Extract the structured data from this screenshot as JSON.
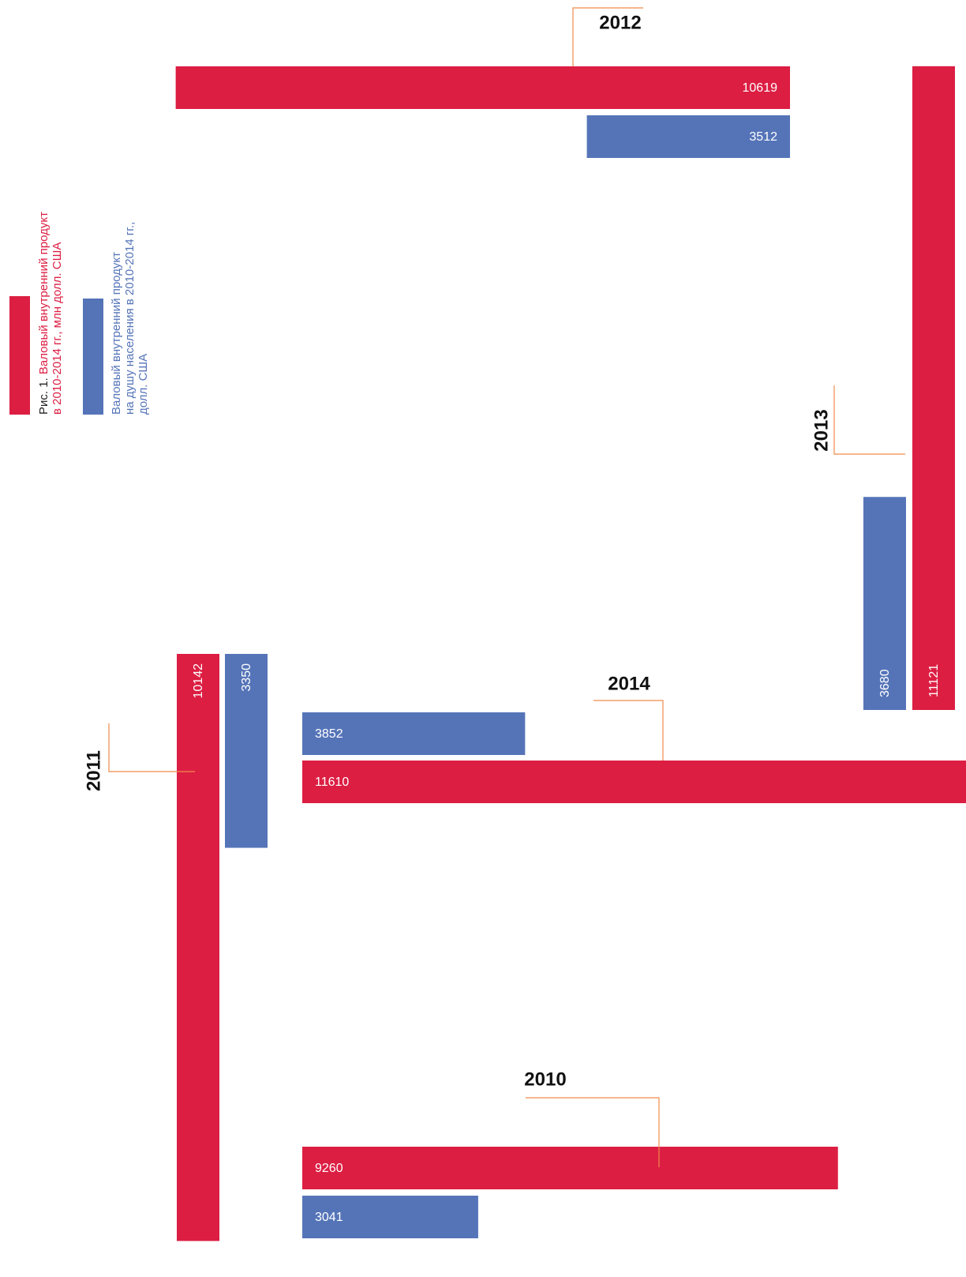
{
  "chart_data": {
    "type": "bar",
    "figure_label": "Рис. 1.",
    "categories": [
      "2010",
      "2011",
      "2012",
      "2013",
      "2014"
    ],
    "series": [
      {
        "name": "Валовый внутренний продукт\nв 2010-2014 гг., млн долл. США",
        "color": "#dc1e43",
        "values": [
          9260,
          10142,
          10619,
          11121,
          11610
        ]
      },
      {
        "name": "Валовый внутренний продукт\nна душу населения в 2010-2014 гг.,\nдолл. США",
        "color": "#5574b8",
        "values": [
          3041,
          3350,
          3512,
          3680,
          3852
        ]
      }
    ]
  }
}
